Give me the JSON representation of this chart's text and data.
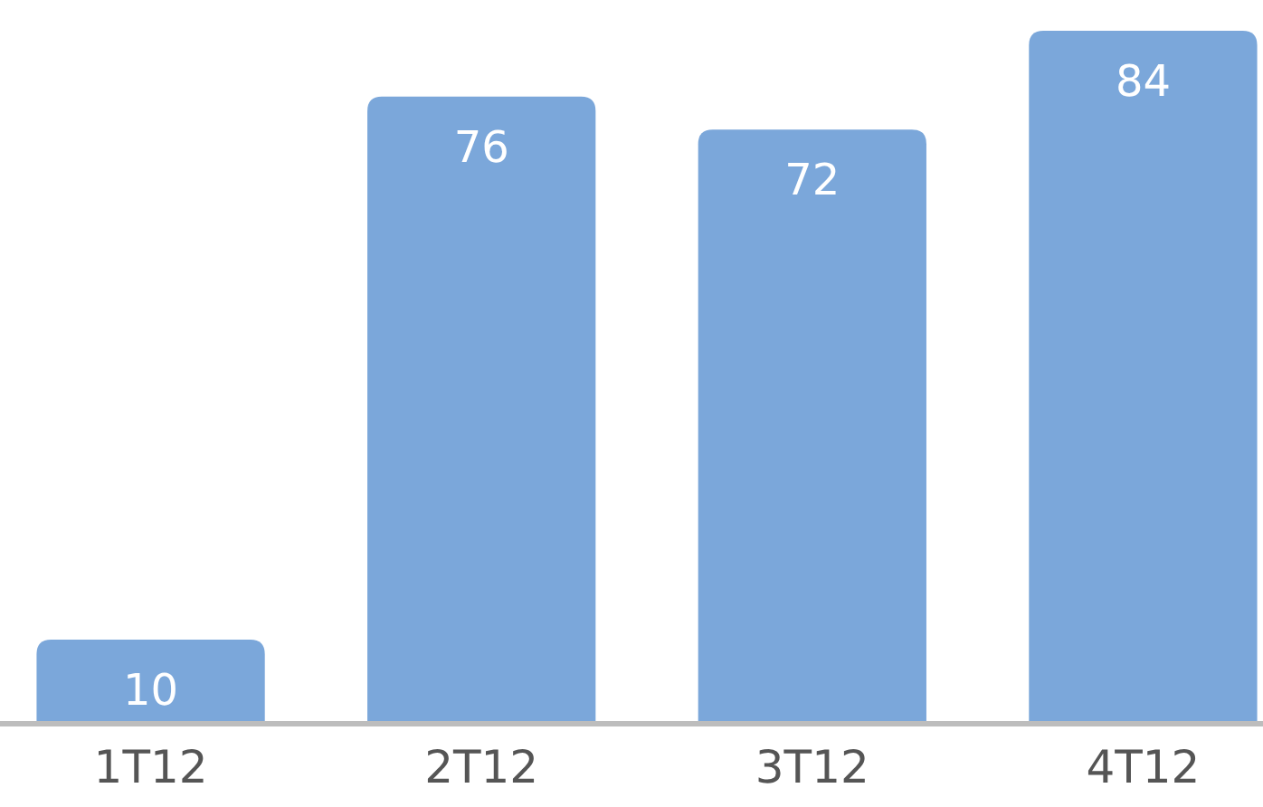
{
  "chart_data": {
    "type": "bar",
    "categories": [
      "1T12",
      "2T12",
      "3T12",
      "4T12"
    ],
    "values": [
      10,
      76,
      72,
      84
    ],
    "color": "#7ba7da",
    "data_labels": true
  }
}
